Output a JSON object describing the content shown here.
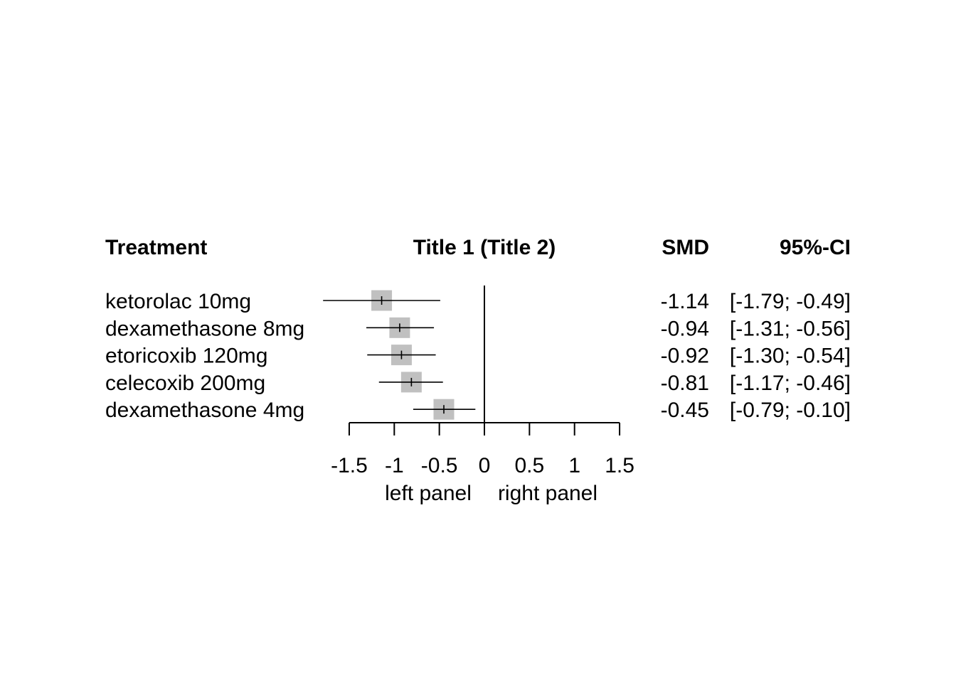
{
  "chart_data": {
    "type": "forest",
    "title": "Title 1 (Title 2)",
    "headers": {
      "treatment": "Treatment",
      "effect": "SMD",
      "ci": "95%-CI"
    },
    "rows": [
      {
        "treatment": "ketorolac 10mg",
        "smd": -1.14,
        "lower": -1.79,
        "upper": -0.49,
        "smd_label": "-1.14",
        "ci_label": "[-1.79; -0.49]"
      },
      {
        "treatment": "dexamethasone 8mg",
        "smd": -0.94,
        "lower": -1.31,
        "upper": -0.56,
        "smd_label": "-0.94",
        "ci_label": "[-1.31; -0.56]"
      },
      {
        "treatment": "etoricoxib 120mg",
        "smd": -0.92,
        "lower": -1.3,
        "upper": -0.54,
        "smd_label": "-0.92",
        "ci_label": "[-1.30; -0.54]"
      },
      {
        "treatment": "celecoxib 200mg",
        "smd": -0.81,
        "lower": -1.17,
        "upper": -0.46,
        "smd_label": "-0.81",
        "ci_label": "[-1.17; -0.46]"
      },
      {
        "treatment": "dexamethasone 4mg",
        "smd": -0.45,
        "lower": -0.79,
        "upper": -0.1,
        "smd_label": "-0.45",
        "ci_label": "[-0.79; -0.10]"
      }
    ],
    "xlim": [
      -1.5,
      1.5
    ],
    "reference_line": 0,
    "x_ticks": [
      -1.5,
      -1,
      -0.5,
      0,
      0.5,
      1,
      1.5
    ],
    "x_tick_labels": [
      "-1.5",
      "-1",
      "-0.5",
      "0",
      "0.5",
      "1",
      "1.5"
    ],
    "label_left": "left panel",
    "label_right": "right panel",
    "colors": {
      "square": "#c0c0c0",
      "line": "#000000"
    }
  }
}
